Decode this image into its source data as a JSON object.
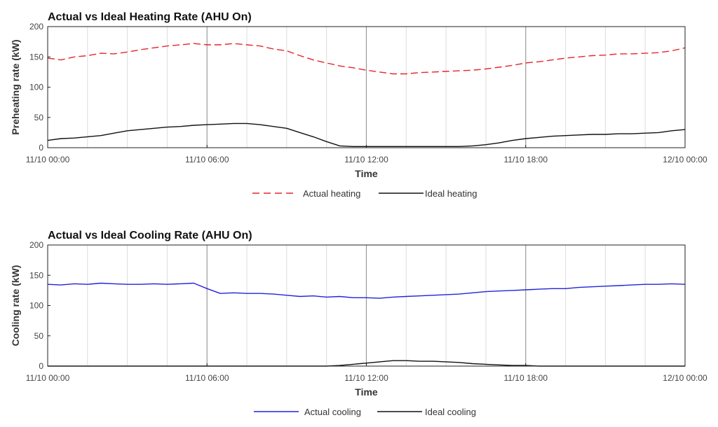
{
  "chart_data": [
    {
      "type": "line",
      "title": "Actual vs Ideal Heating Rate (AHU On)",
      "xlabel": "Time",
      "ylabel": "Preheating rate (kW)",
      "x_ticks": [
        "11/10 00:00",
        "11/10 06:00",
        "11/10 12:00",
        "11/10 18:00",
        "12/10 00:00"
      ],
      "xlim_hours": [
        0,
        24
      ],
      "ylim": [
        0,
        200
      ],
      "y_ticks": [
        "0",
        "50",
        "100",
        "150",
        "200"
      ],
      "grid": "vertical",
      "legend": "bottom-center",
      "series": [
        {
          "name": "Actual heating",
          "color": "#e8242b",
          "style": "dashed",
          "x": [
            0,
            0.5,
            1,
            1.5,
            2,
            2.5,
            3,
            3.5,
            4,
            4.5,
            5,
            5.5,
            6,
            6.5,
            7,
            7.5,
            8,
            8.5,
            9,
            9.5,
            10,
            10.5,
            11,
            11.5,
            12,
            12.5,
            13,
            13.5,
            14,
            14.5,
            15,
            15.5,
            16,
            16.5,
            17,
            17.5,
            18,
            18.5,
            19,
            19.5,
            20,
            20.5,
            21,
            21.5,
            22,
            22.5,
            23,
            23.5,
            24
          ],
          "y": [
            148,
            145,
            150,
            152,
            156,
            155,
            158,
            162,
            165,
            168,
            170,
            172,
            170,
            170,
            172,
            170,
            168,
            163,
            160,
            152,
            145,
            140,
            135,
            132,
            128,
            125,
            122,
            122,
            124,
            125,
            126,
            127,
            128,
            130,
            133,
            136,
            140,
            142,
            145,
            148,
            150,
            152,
            153,
            155,
            155,
            156,
            157,
            160,
            165
          ]
        },
        {
          "name": "Ideal heating",
          "color": "#111111",
          "style": "solid",
          "x": [
            0,
            0.5,
            1,
            1.5,
            2,
            2.5,
            3,
            3.5,
            4,
            4.5,
            5,
            5.5,
            6,
            6.5,
            7,
            7.5,
            8,
            8.5,
            9,
            9.5,
            10,
            10.5,
            11,
            11.5,
            12,
            12.5,
            13,
            13.5,
            14,
            14.5,
            15,
            15.5,
            16,
            16.5,
            17,
            17.5,
            18,
            18.5,
            19,
            19.5,
            20,
            20.5,
            21,
            21.5,
            22,
            22.5,
            23,
            23.5,
            24
          ],
          "y": [
            12,
            15,
            16,
            18,
            20,
            24,
            28,
            30,
            32,
            34,
            35,
            37,
            38,
            39,
            40,
            40,
            38,
            35,
            32,
            25,
            18,
            10,
            3,
            2,
            2,
            2,
            2,
            2,
            2,
            2,
            2,
            2,
            3,
            5,
            8,
            12,
            15,
            17,
            19,
            20,
            21,
            22,
            22,
            23,
            23,
            24,
            25,
            28,
            30
          ]
        }
      ]
    },
    {
      "type": "line",
      "title": "Actual vs Ideal Cooling Rate (AHU On)",
      "xlabel": "Time",
      "ylabel": "Cooling rate (kW)",
      "x_ticks": [
        "11/10 00:00",
        "11/10 06:00",
        "11/10 12:00",
        "11/10 18:00",
        "12/10 00:00"
      ],
      "xlim_hours": [
        0,
        24
      ],
      "ylim": [
        0,
        200
      ],
      "y_ticks": [
        "0",
        "50",
        "100",
        "150",
        "200"
      ],
      "grid": "vertical",
      "legend": "bottom-center",
      "series": [
        {
          "name": "Actual cooling",
          "color": "#2222dd",
          "style": "solid",
          "x": [
            0,
            0.5,
            1,
            1.5,
            2,
            2.5,
            3,
            3.5,
            4,
            4.5,
            5,
            5.5,
            6,
            6.5,
            7,
            7.5,
            8,
            8.5,
            9,
            9.5,
            10,
            10.5,
            11,
            11.5,
            12,
            12.5,
            13,
            13.5,
            14,
            14.5,
            15,
            15.5,
            16,
            16.5,
            17,
            17.5,
            18,
            18.5,
            19,
            19.5,
            20,
            20.5,
            21,
            21.5,
            22,
            22.5,
            23,
            23.5,
            24
          ],
          "y": [
            135,
            134,
            136,
            135,
            137,
            136,
            135,
            135,
            136,
            135,
            136,
            137,
            128,
            120,
            121,
            120,
            120,
            119,
            117,
            115,
            116,
            114,
            115,
            113,
            113,
            112,
            114,
            115,
            116,
            117,
            118,
            119,
            121,
            123,
            124,
            125,
            126,
            127,
            128,
            128,
            130,
            131,
            132,
            133,
            134,
            135,
            135,
            136,
            135
          ]
        },
        {
          "name": "Ideal cooling",
          "color": "#111111",
          "style": "solid",
          "x": [
            0,
            0.5,
            1,
            1.5,
            2,
            2.5,
            3,
            3.5,
            4,
            4.5,
            5,
            5.5,
            6,
            6.5,
            7,
            7.5,
            8,
            8.5,
            9,
            9.5,
            10,
            10.5,
            11,
            11.5,
            12,
            12.5,
            13,
            13.5,
            14,
            14.5,
            15,
            15.5,
            16,
            16.5,
            17,
            17.5,
            18,
            18.5,
            19,
            19.5,
            20,
            20.5,
            21,
            21.5,
            22,
            22.5,
            23,
            23.5,
            24
          ],
          "y": [
            0,
            0,
            0,
            0,
            0,
            0,
            0,
            0,
            0,
            0,
            0,
            0,
            0,
            0,
            0,
            0,
            0,
            0,
            0,
            0,
            0,
            0,
            1,
            3,
            5,
            7,
            9,
            9,
            8,
            8,
            7,
            6,
            4,
            3,
            2,
            1,
            1,
            0,
            0,
            0,
            0,
            0,
            0,
            0,
            0,
            0,
            0,
            0,
            0
          ]
        }
      ]
    }
  ]
}
